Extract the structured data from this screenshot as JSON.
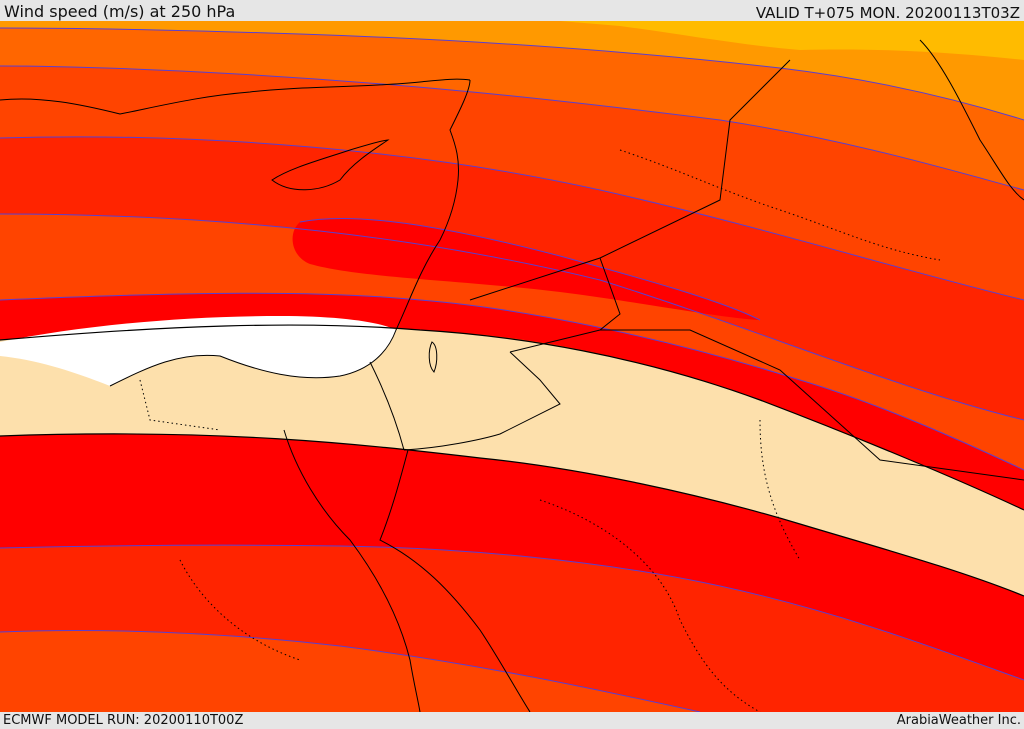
{
  "header": {
    "title": "Wind speed (m/s) at 250 hPa",
    "valid": "VALID T+075 MON. 20200113T03Z"
  },
  "footer": {
    "model_run": "ECMWF MODEL RUN: 20200110T00Z",
    "credit": "ArabiaWeather Inc."
  },
  "colors": {
    "band_0_light": "#ffffff",
    "band_1_wheat": "#fde0ac",
    "band_2_red": "#ff0000",
    "band_3_redorange": "#ff2400",
    "band_4_orangered": "#ff4400",
    "band_5_orange": "#ff6600",
    "band_6_amber": "#ff9900",
    "band_7_gold": "#ffbb00",
    "contour_line": "#5a3fd0",
    "coastline": "#000000"
  }
}
